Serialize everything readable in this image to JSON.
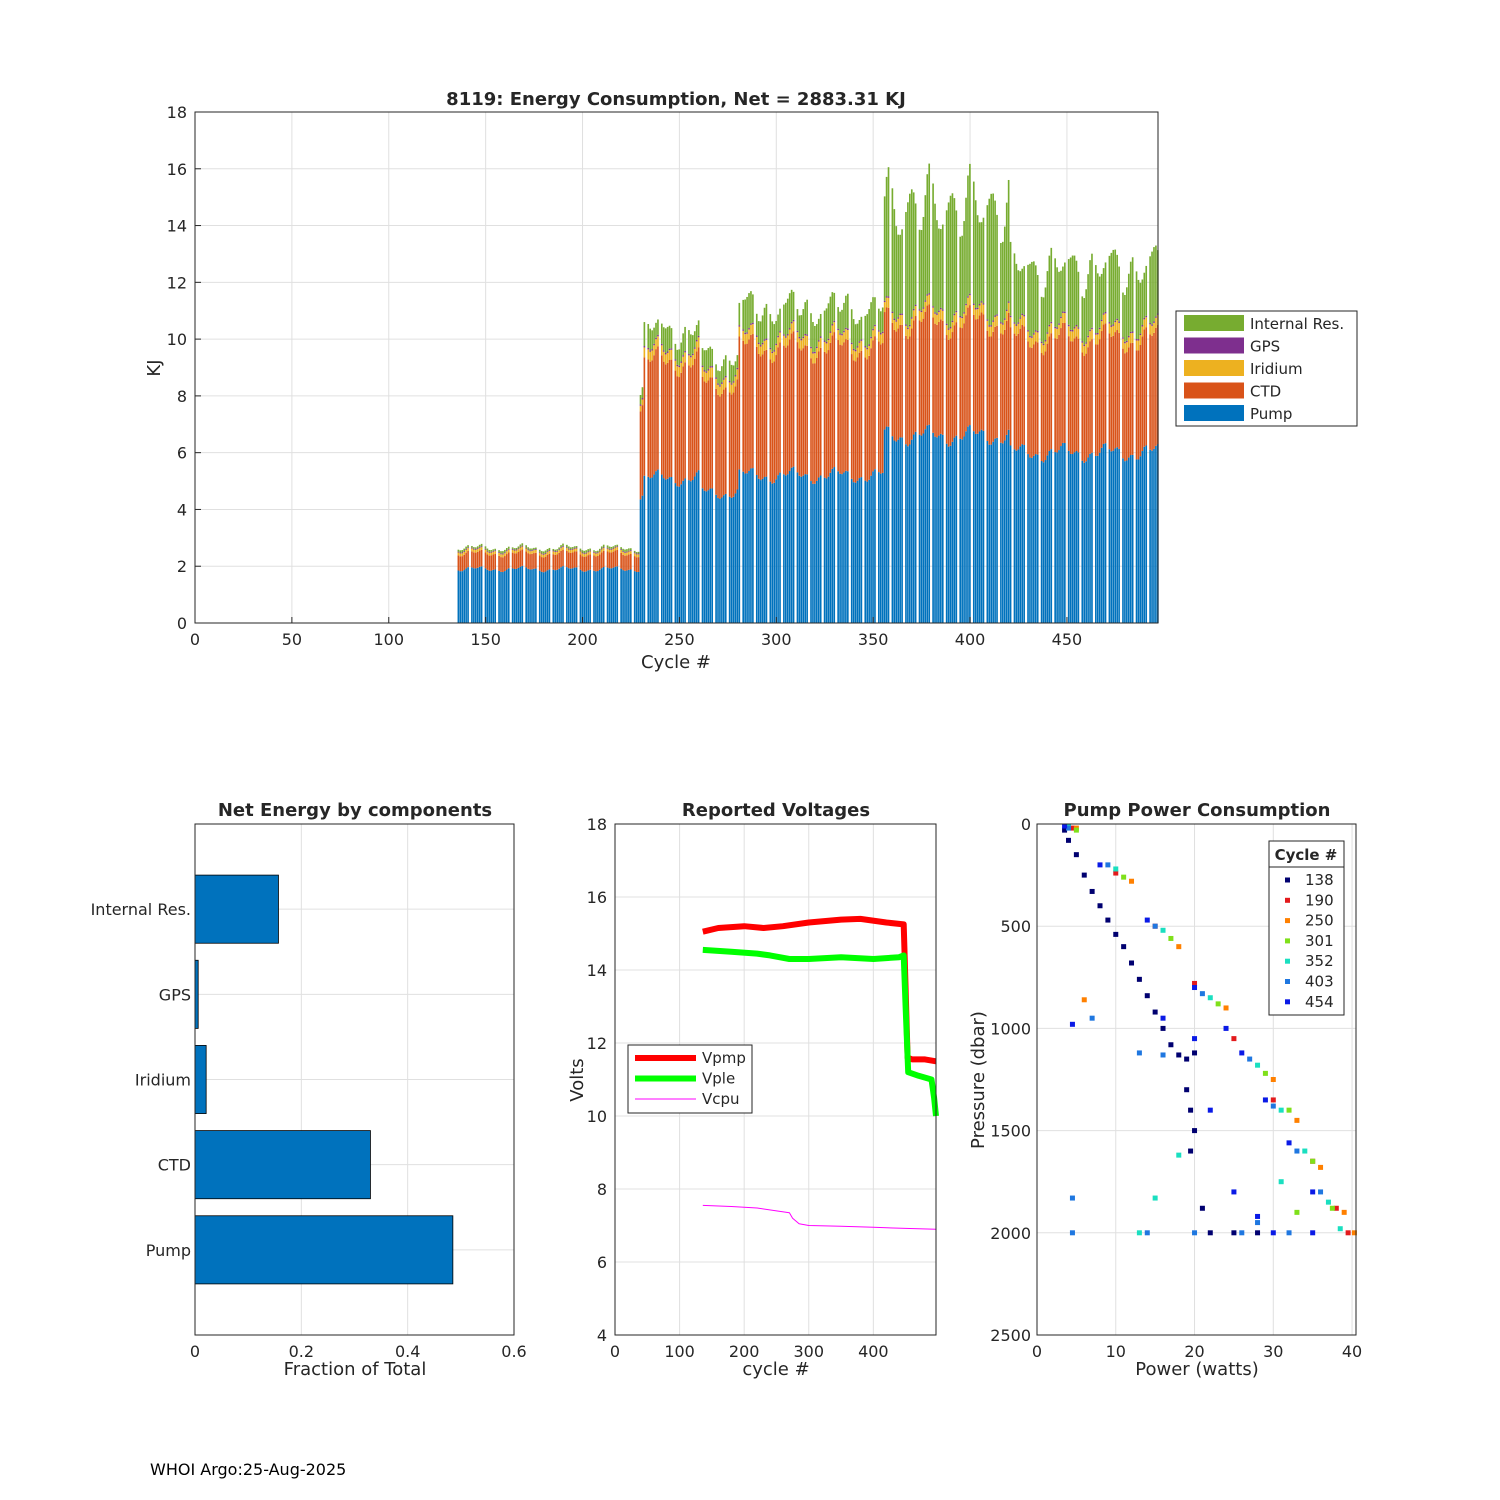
{
  "footer": "WHOI Argo:25-Aug-2025",
  "chart_data": [
    {
      "type": "bar",
      "stacked": true,
      "title": "8119: Energy Consumption,  Net = 2883.31 KJ",
      "xlabel": "Cycle #",
      "ylabel": "KJ",
      "xlim": [
        0,
        497
      ],
      "ylim": [
        0,
        18
      ],
      "xticks": [
        0,
        50,
        100,
        150,
        200,
        250,
        300,
        350,
        400,
        450
      ],
      "yticks": [
        0,
        2,
        4,
        6,
        8,
        10,
        12,
        14,
        16,
        18
      ],
      "grid": true,
      "legend_position": "outside-right",
      "series_order_top_to_bottom": [
        "Internal Res.",
        "GPS",
        "Iridium",
        "CTD",
        "Pump"
      ],
      "series_colors": {
        "Pump": "#0072BD",
        "CTD": "#D95319",
        "Iridium": "#EDB120",
        "GPS": "#7E2F8E",
        "Internal Res.": "#77AC30"
      },
      "cycle_segments": [
        {
          "x": [
            136,
            229
          ],
          "pump": 1.9,
          "ctd": 0.55,
          "iridium": 0.1,
          "gps": 0.03,
          "internal": 0.07
        },
        {
          "x": [
            230,
            231
          ],
          "pump": 4.5,
          "ctd": 3.2,
          "iridium": 0.2,
          "gps": 0.05,
          "internal": 0.35
        },
        {
          "x": [
            232,
            260
          ],
          "pump": 5.1,
          "ctd": 4.1,
          "iridium": 0.35,
          "gps": 0.05,
          "internal": 0.7
        },
        {
          "x": [
            261,
            280
          ],
          "pump": 4.6,
          "ctd": 3.8,
          "iridium": 0.35,
          "gps": 0.05,
          "internal": 0.6
        },
        {
          "x": [
            281,
            355
          ],
          "pump": 5.2,
          "ctd": 4.5,
          "iridium": 0.35,
          "gps": 0.05,
          "internal": 1.0
        },
        {
          "x": [
            356,
            420
          ],
          "pump": 6.6,
          "ctd": 4.0,
          "iridium": 0.35,
          "gps": 0.05,
          "internal": 3.7
        },
        {
          "x": [
            421,
            497
          ],
          "pump": 6.0,
          "ctd": 4.0,
          "iridium": 0.35,
          "gps": 0.05,
          "internal": 2.1
        }
      ]
    },
    {
      "type": "bar",
      "orientation": "horizontal",
      "title": "Net Energy by components",
      "xlabel": "Fraction of Total",
      "categories": [
        "Internal Res.",
        "GPS",
        "Iridium",
        "CTD",
        "Pump"
      ],
      "values": [
        0.157,
        0.006,
        0.021,
        0.33,
        0.485
      ],
      "xlim": [
        0,
        0.6
      ],
      "xticks": [
        0,
        0.2,
        0.4,
        0.6
      ],
      "bar_color": "#0072BD",
      "grid": true
    },
    {
      "type": "line",
      "title": "Reported Voltages",
      "xlabel": "cycle #",
      "ylabel": "Volts",
      "xlim": [
        0,
        497
      ],
      "ylim": [
        4,
        18
      ],
      "xticks": [
        0,
        100,
        200,
        300,
        400
      ],
      "yticks": [
        4,
        6,
        8,
        10,
        12,
        14,
        16,
        18
      ],
      "grid": true,
      "legend_position": "middle-left",
      "series": [
        {
          "name": "Vpmp",
          "color": "#FF0000",
          "width": 6,
          "x": [
            136,
            160,
            200,
            230,
            260,
            300,
            350,
            380,
            420,
            447,
            450,
            453,
            460,
            480,
            497
          ],
          "y": [
            15.05,
            15.15,
            15.2,
            15.15,
            15.2,
            15.3,
            15.38,
            15.4,
            15.3,
            15.25,
            13.5,
            11.6,
            11.55,
            11.55,
            11.5
          ]
        },
        {
          "name": "Vple",
          "color": "#00FF00",
          "width": 6,
          "x": [
            136,
            180,
            220,
            240,
            270,
            300,
            350,
            400,
            440,
            447,
            450,
            454,
            470,
            490,
            494,
            497
          ],
          "y": [
            14.55,
            14.5,
            14.45,
            14.4,
            14.3,
            14.3,
            14.35,
            14.3,
            14.35,
            14.4,
            13.0,
            11.2,
            11.1,
            11.0,
            10.5,
            10.0
          ]
        },
        {
          "name": "Vcpu",
          "color": "#FF00FF",
          "width": 1,
          "x": [
            136,
            180,
            220,
            250,
            270,
            275,
            285,
            300,
            350,
            400,
            450,
            497
          ],
          "y": [
            7.55,
            7.52,
            7.48,
            7.4,
            7.35,
            7.2,
            7.05,
            7.0,
            6.98,
            6.95,
            6.92,
            6.9
          ]
        }
      ]
    },
    {
      "type": "scatter",
      "title": "Pump Power Consumption",
      "xlabel": "Power (watts)",
      "ylabel": "Pressure (dbar)",
      "xlim": [
        0,
        40.5
      ],
      "ylim": [
        0,
        2500
      ],
      "y_reversed": true,
      "xticks": [
        0,
        10,
        20,
        30,
        40
      ],
      "yticks": [
        0,
        500,
        1000,
        1500,
        2000,
        2500
      ],
      "grid": true,
      "legend_title": "Cycle #",
      "legend_position": "top-right",
      "series": [
        {
          "name": "138",
          "color": "#000070",
          "points": [
            [
              3.5,
              30
            ],
            [
              4,
              80
            ],
            [
              5,
              150
            ],
            [
              6,
              250
            ],
            [
              7,
              330
            ],
            [
              8,
              400
            ],
            [
              9,
              470
            ],
            [
              10,
              540
            ],
            [
              11,
              600
            ],
            [
              12,
              680
            ],
            [
              13,
              760
            ],
            [
              14,
              840
            ],
            [
              15,
              920
            ],
            [
              16,
              1000
            ],
            [
              17,
              1080
            ],
            [
              18,
              1130
            ],
            [
              19,
              1150
            ],
            [
              20,
              1120
            ],
            [
              19,
              1300
            ],
            [
              19.5,
              1400
            ],
            [
              20,
              1500
            ],
            [
              19.5,
              1600
            ],
            [
              21,
              1880
            ],
            [
              22,
              2000
            ],
            [
              25,
              2000
            ],
            [
              28,
              2000
            ]
          ]
        },
        {
          "name": "190",
          "color": "#E31A1C",
          "points": [
            [
              4.5,
              20
            ],
            [
              10,
              240
            ],
            [
              15,
              500
            ],
            [
              20,
              780
            ],
            [
              25,
              1050
            ],
            [
              30,
              1350
            ],
            [
              35,
              1650
            ],
            [
              38,
              1880
            ],
            [
              39.5,
              2000
            ]
          ]
        },
        {
          "name": "250",
          "color": "#FF8000",
          "points": [
            [
              5,
              20
            ],
            [
              12,
              280
            ],
            [
              18,
              600
            ],
            [
              24,
              900
            ],
            [
              30,
              1250
            ],
            [
              33,
              1450
            ],
            [
              36,
              1680
            ],
            [
              39,
              1900
            ],
            [
              40.3,
              2000
            ],
            [
              6,
              860
            ]
          ]
        },
        {
          "name": "301",
          "color": "#7FE01A",
          "points": [
            [
              5,
              30
            ],
            [
              11,
              260
            ],
            [
              17,
              560
            ],
            [
              23,
              880
            ],
            [
              29,
              1220
            ],
            [
              32,
              1400
            ],
            [
              35,
              1650
            ],
            [
              37.5,
              1880
            ],
            [
              33,
              1900
            ]
          ]
        },
        {
          "name": "352",
          "color": "#1ADFC0",
          "points": [
            [
              4,
              10
            ],
            [
              10,
              220
            ],
            [
              16,
              520
            ],
            [
              22,
              850
            ],
            [
              28,
              1180
            ],
            [
              31,
              1400
            ],
            [
              34,
              1600
            ],
            [
              37,
              1850
            ],
            [
              38.5,
              1980
            ],
            [
              15,
              1830
            ],
            [
              13,
              2000
            ],
            [
              18,
              1620
            ],
            [
              31,
              1750
            ]
          ]
        },
        {
          "name": "403",
          "color": "#1F77E0",
          "points": [
            [
              4,
              20
            ],
            [
              9,
              200
            ],
            [
              15,
              500
            ],
            [
              21,
              830
            ],
            [
              27,
              1150
            ],
            [
              30,
              1380
            ],
            [
              33,
              1600
            ],
            [
              36,
              1800
            ],
            [
              14,
              2000
            ],
            [
              20,
              2000
            ],
            [
              26,
              2000
            ],
            [
              32,
              2000
            ],
            [
              7,
              950
            ],
            [
              13,
              1120
            ],
            [
              16,
              1130
            ],
            [
              4.5,
              1830
            ],
            [
              4.5,
              2000
            ],
            [
              28,
              1950
            ]
          ]
        },
        {
          "name": "454",
          "color": "#0A1AE6",
          "points": [
            [
              3.5,
              10
            ],
            [
              8,
              200
            ],
            [
              14,
              470
            ],
            [
              20,
              800
            ],
            [
              26,
              1120
            ],
            [
              29,
              1350
            ],
            [
              32,
              1560
            ],
            [
              35,
              1800
            ],
            [
              16,
              950
            ],
            [
              20,
              1050
            ],
            [
              24,
              1000
            ],
            [
              25,
              1800
            ],
            [
              28,
              1920
            ],
            [
              30,
              2000
            ],
            [
              35,
              2000
            ],
            [
              4.5,
              980
            ],
            [
              22,
              1400
            ]
          ]
        }
      ]
    }
  ]
}
